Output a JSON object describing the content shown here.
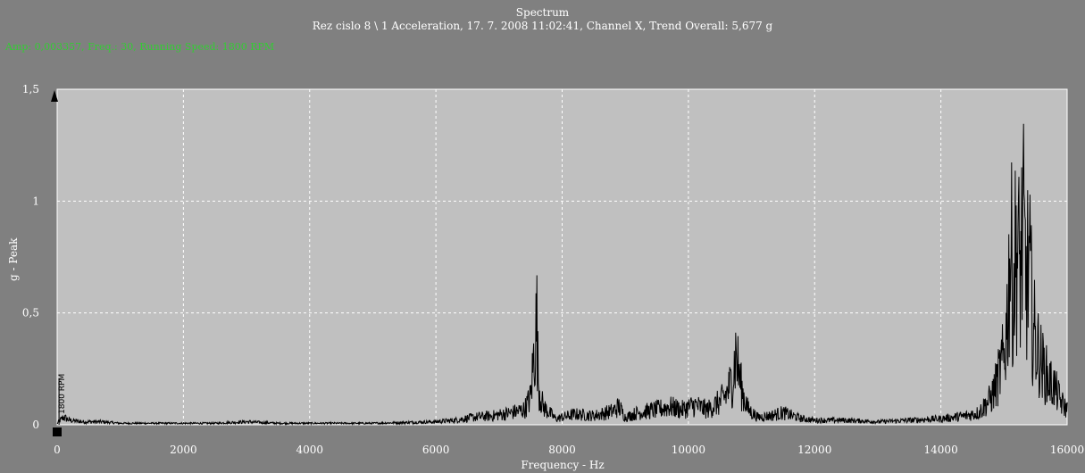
{
  "chart_data": {
    "type": "line",
    "title": "Spectrum",
    "subtitle": "Rez cislo 8 \\ 1 Acceleration, 17. 7. 2008 11:02:41, Channel X, Trend Overall: 5,677 g",
    "xlabel": "Frequency - Hz",
    "ylabel": "g - Peak",
    "xlim": [
      0,
      16000
    ],
    "ylim": [
      0,
      1.5
    ],
    "x_ticks": [
      0,
      2000,
      4000,
      6000,
      8000,
      10000,
      12000,
      14000,
      16000
    ],
    "x_tick_labels": [
      "0",
      "2000",
      "4000",
      "6000",
      "8000",
      "10000",
      "12000",
      "14000",
      "16000"
    ],
    "y_ticks": [
      0,
      0.5,
      1,
      1.5
    ],
    "y_tick_labels": [
      "0",
      "0,5",
      "1",
      "1,5"
    ],
    "grid": true,
    "marker_label": "1800 RPM",
    "marker_freq": 30,
    "series": [
      {
        "color": "#000000",
        "x": [
          0,
          100,
          200,
          400,
          700,
          1000,
          1500,
          2000,
          2500,
          3000,
          3500,
          4000,
          4500,
          5000,
          5500,
          6000,
          6300,
          6600,
          6900,
          7200,
          7400,
          7500,
          7550,
          7600,
          7620,
          7650,
          7700,
          7800,
          7900,
          8000,
          8200,
          8500,
          8800,
          8900,
          9000,
          9200,
          9500,
          9700,
          9900,
          10100,
          10300,
          10500,
          10600,
          10700,
          10750,
          10800,
          10850,
          10950,
          11100,
          11300,
          11500,
          11800,
          12000,
          12500,
          13000,
          13500,
          14000,
          14200,
          14400,
          14600,
          14800,
          14900,
          15000,
          15050,
          15100,
          15150,
          15200,
          15250,
          15300,
          15350,
          15400,
          15450,
          15500,
          15600,
          15700,
          15800,
          15900,
          16000
        ],
        "y": [
          0.01,
          0.05,
          0.03,
          0.02,
          0.02,
          0.01,
          0.01,
          0.01,
          0.01,
          0.02,
          0.01,
          0.01,
          0.01,
          0.01,
          0.015,
          0.02,
          0.03,
          0.05,
          0.06,
          0.08,
          0.1,
          0.18,
          0.45,
          0.68,
          0.3,
          0.2,
          0.12,
          0.08,
          0.04,
          0.05,
          0.07,
          0.06,
          0.09,
          0.12,
          0.05,
          0.08,
          0.1,
          0.12,
          0.1,
          0.13,
          0.1,
          0.15,
          0.2,
          0.3,
          0.47,
          0.35,
          0.22,
          0.1,
          0.05,
          0.06,
          0.08,
          0.04,
          0.03,
          0.03,
          0.02,
          0.03,
          0.04,
          0.05,
          0.06,
          0.08,
          0.18,
          0.3,
          0.45,
          0.7,
          1.18,
          0.9,
          1.23,
          1.0,
          1.29,
          0.95,
          1.05,
          0.7,
          0.55,
          0.4,
          0.3,
          0.25,
          0.15,
          0.1
        ]
      }
    ]
  },
  "header": {
    "status_line": "Amp: 0,003357, Freq.: 30, Running Speed: 1800 RPM",
    "status_color": "#33cc33"
  }
}
